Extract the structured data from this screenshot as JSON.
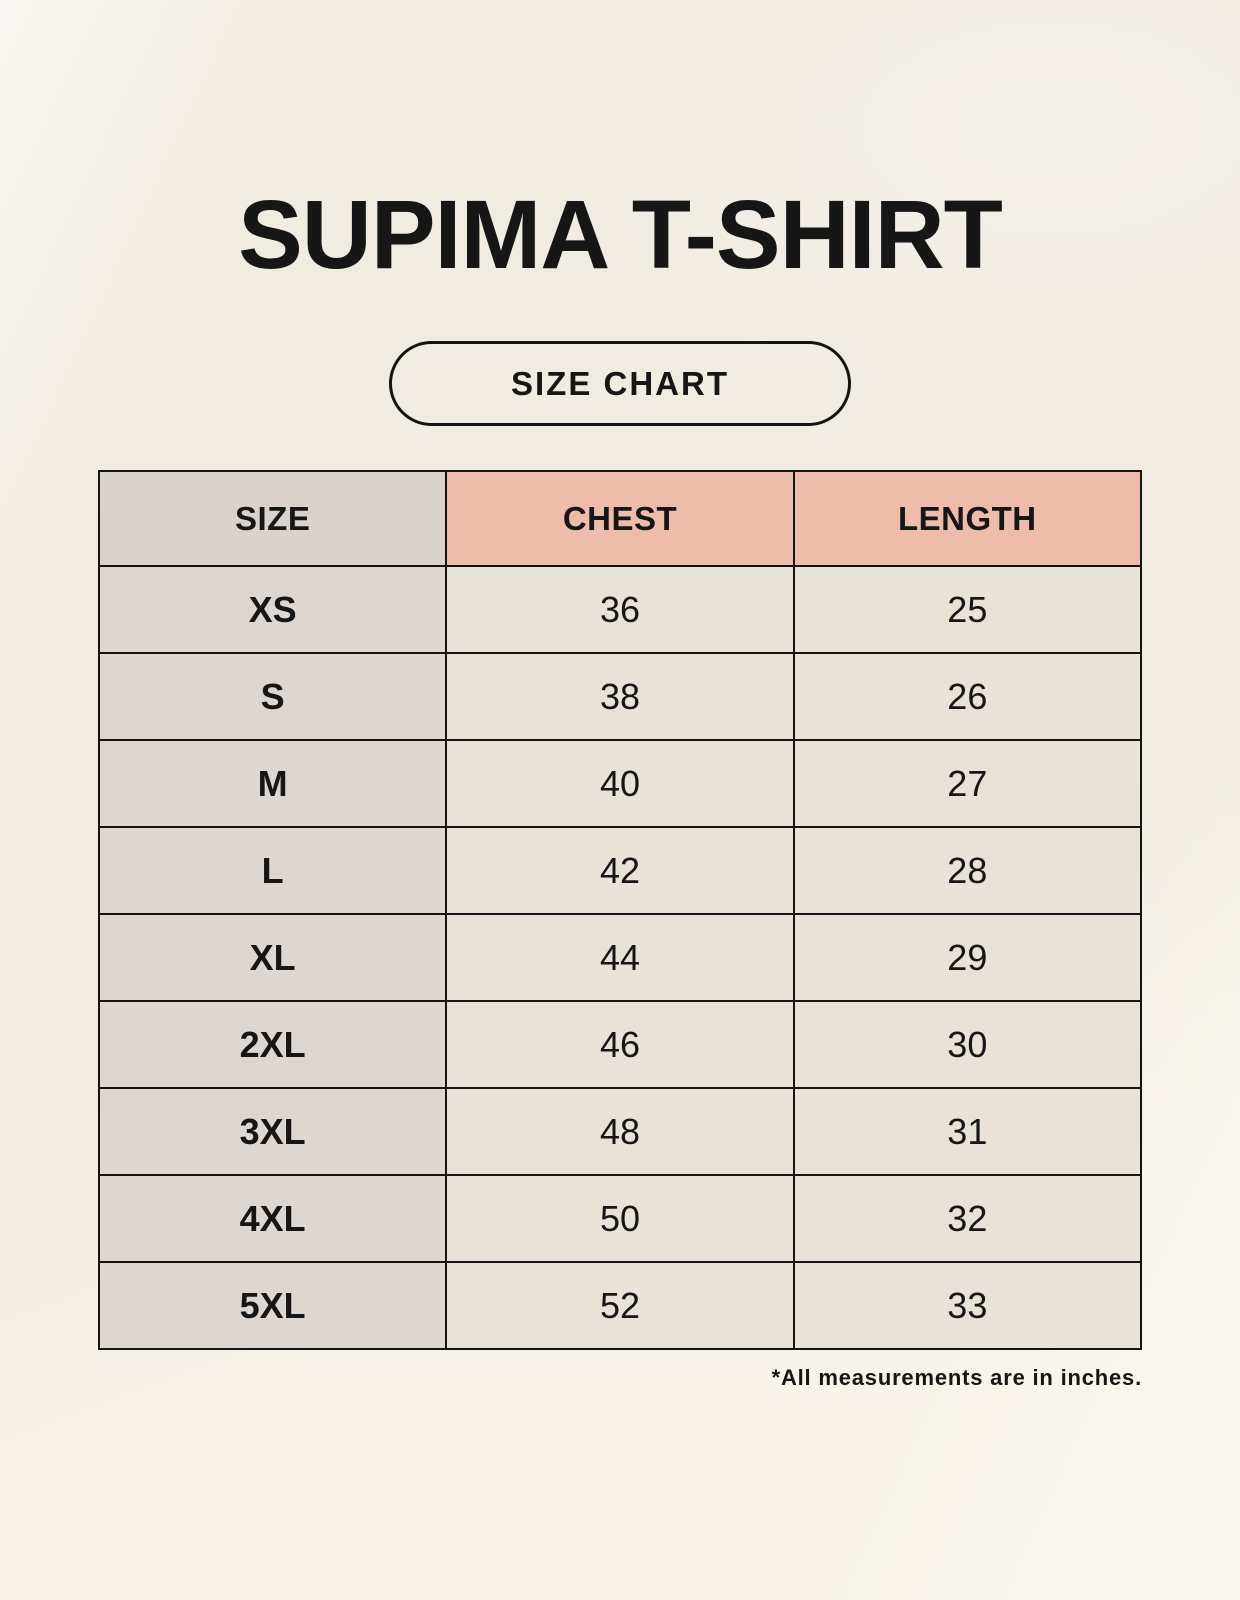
{
  "page": {
    "title": "SUPIMA T-SHIRT",
    "button_label": "SIZE CHART",
    "footnote": "*All measurements are in inches."
  },
  "chart_data": {
    "type": "table",
    "title": "SUPIMA T-SHIRT size chart",
    "columns": [
      "SIZE",
      "CHEST",
      "LENGTH"
    ],
    "rows": [
      [
        "XS",
        "36",
        "25"
      ],
      [
        "S",
        "38",
        "26"
      ],
      [
        "M",
        "40",
        "27"
      ],
      [
        "L",
        "42",
        "28"
      ],
      [
        "XL",
        "44",
        "29"
      ],
      [
        "2XL",
        "46",
        "30"
      ],
      [
        "3XL",
        "48",
        "31"
      ],
      [
        "4XL",
        "50",
        "32"
      ],
      [
        "5XL",
        "52",
        "33"
      ]
    ],
    "units": "inches"
  },
  "colors": {
    "background": "#f7f3ea",
    "border": "#141414",
    "text": "#161616",
    "header_accent_salmon": "#edbcab",
    "header_taupe": "#dad3cd",
    "size_column_taupe": "#ded7d1",
    "cell_cream": "#e9e2d7"
  }
}
